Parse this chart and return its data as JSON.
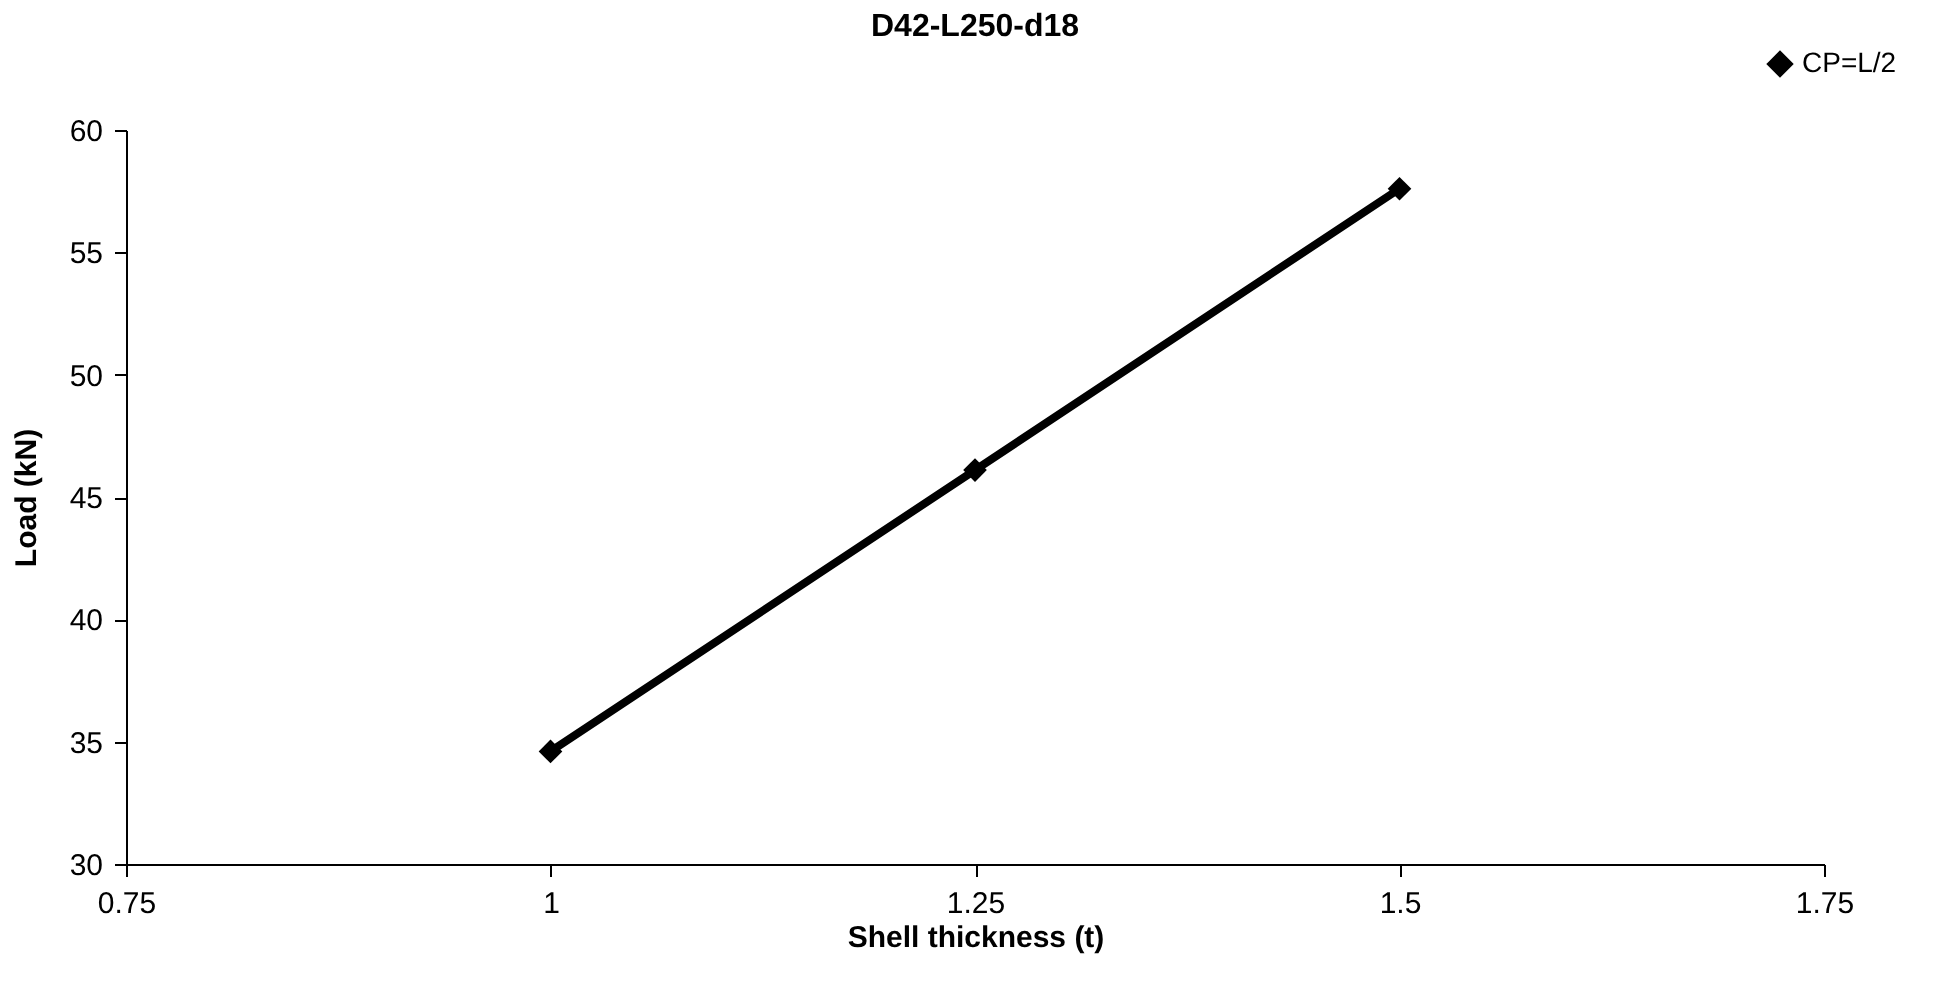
{
  "chart_data": {
    "type": "line",
    "title": "D42-L250-d18",
    "xlabel": "Shell thickness (t)",
    "ylabel": "Load (kN)",
    "x": [
      1,
      1.25,
      1.5
    ],
    "series": [
      {
        "name": "CP=L/2",
        "color": "#000000",
        "values": [
          34.6,
          46.1,
          57.6
        ]
      }
    ],
    "xlim": [
      0.75,
      1.75
    ],
    "xticks": [
      0.75,
      1,
      1.25,
      1.5,
      1.75
    ],
    "ylim": [
      30,
      60
    ],
    "yticks": [
      30,
      35,
      40,
      45,
      50,
      55,
      60
    ],
    "grid": false,
    "legend": "top right",
    "marker": "diamond",
    "line_style": "solid"
  }
}
